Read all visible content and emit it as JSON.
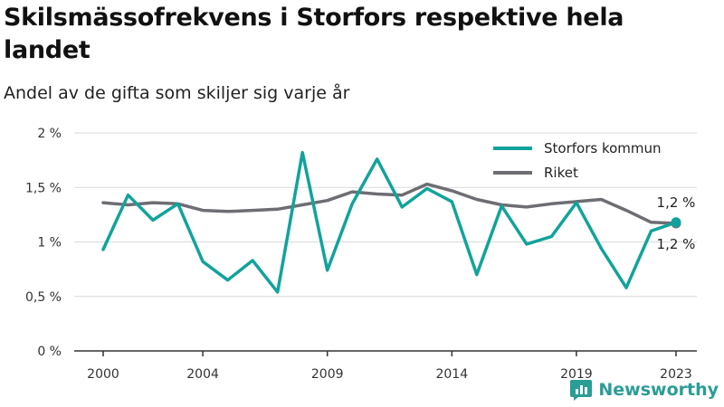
{
  "title": "Skilsmässofrekvens i Storfors respektive hela landet",
  "subtitle": "Andel av de gifta som skiljer sig varje år",
  "brand": "Newsworthy",
  "colors": {
    "storfors": "#11a39b",
    "riket": "#6e6d73",
    "grid": "#d9d9d9",
    "axis": "#333333"
  },
  "chart_data": {
    "type": "line",
    "title": "Skilsmässofrekvens i Storfors respektive hela landet",
    "subtitle": "Andel av de gifta som skiljer sig varje år",
    "xlabel": "",
    "ylabel": "",
    "x": [
      2000,
      2001,
      2002,
      2003,
      2004,
      2005,
      2006,
      2007,
      2008,
      2009,
      2010,
      2011,
      2012,
      2013,
      2014,
      2015,
      2016,
      2017,
      2018,
      2019,
      2020,
      2021,
      2022,
      2023
    ],
    "x_ticks": [
      {
        "value": 2000,
        "label": "2000"
      },
      {
        "value": 2004,
        "label": "2004"
      },
      {
        "value": 2009,
        "label": "2009"
      },
      {
        "value": 2014,
        "label": "2014"
      },
      {
        "value": 2019,
        "label": "2019"
      },
      {
        "value": 2023,
        "label": "2023"
      }
    ],
    "y_ticks": [
      {
        "value": 0,
        "label": "0 %"
      },
      {
        "value": 0.5,
        "label": "0,5 %"
      },
      {
        "value": 1,
        "label": "1 %"
      },
      {
        "value": 1.5,
        "label": "1,5 %"
      },
      {
        "value": 2,
        "label": "2 %"
      }
    ],
    "ylim": [
      0,
      2
    ],
    "grid": true,
    "legend_position": "top-right",
    "series": [
      {
        "name": "Storfors kommun",
        "color_key": "storfors",
        "values": [
          0.93,
          1.43,
          1.2,
          1.35,
          0.82,
          0.65,
          0.83,
          0.54,
          1.82,
          0.74,
          1.35,
          1.76,
          1.32,
          1.49,
          1.37,
          0.7,
          1.33,
          0.98,
          1.05,
          1.36,
          0.94,
          0.58,
          1.1,
          1.18
        ]
      },
      {
        "name": "Riket",
        "color_key": "riket",
        "values": [
          1.36,
          1.34,
          1.36,
          1.35,
          1.29,
          1.28,
          1.29,
          1.3,
          1.34,
          1.38,
          1.46,
          1.44,
          1.43,
          1.53,
          1.47,
          1.39,
          1.34,
          1.32,
          1.35,
          1.37,
          1.39,
          1.29,
          1.18,
          1.17
        ]
      }
    ],
    "end_labels": [
      {
        "series": "Storfors kommun",
        "text": "1,2 %"
      },
      {
        "series": "Riket",
        "text": "1,2 %"
      }
    ]
  }
}
